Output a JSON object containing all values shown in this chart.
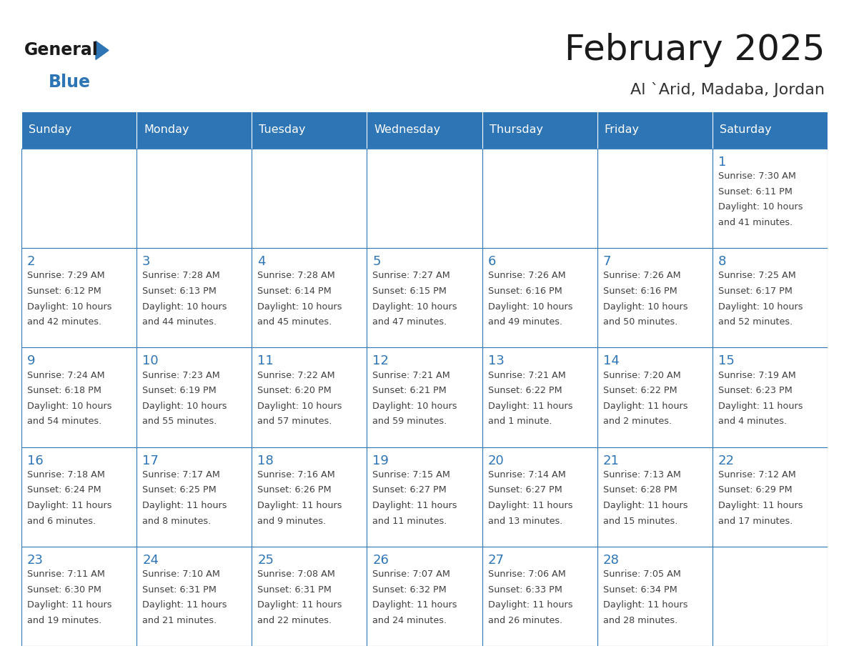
{
  "title": "February 2025",
  "subtitle": "Al `Arid, Madaba, Jordan",
  "days_of_week": [
    "Sunday",
    "Monday",
    "Tuesday",
    "Wednesday",
    "Thursday",
    "Friday",
    "Saturday"
  ],
  "header_bg": "#2E75B6",
  "header_text": "#FFFFFF",
  "cell_bg": "#FFFFFF",
  "day_number_color": "#2E75B6",
  "info_text_color": "#404040",
  "border_color": "#2E75B6",
  "title_color": "#1a1a1a",
  "subtitle_color": "#333333",
  "logo_general_color": "#1a1a1a",
  "logo_blue_color": "#2E75B6",
  "figsize": [
    11.88,
    9.18
  ],
  "dpi": 100,
  "calendar_data": [
    [
      null,
      null,
      null,
      null,
      null,
      null,
      {
        "day": "1",
        "sunrise": "7:30 AM",
        "sunset": "6:11 PM",
        "daylight_h": "10 hours",
        "daylight_m": "41 minutes."
      }
    ],
    [
      {
        "day": "2",
        "sunrise": "7:29 AM",
        "sunset": "6:12 PM",
        "daylight_h": "10 hours",
        "daylight_m": "42 minutes."
      },
      {
        "day": "3",
        "sunrise": "7:28 AM",
        "sunset": "6:13 PM",
        "daylight_h": "10 hours",
        "daylight_m": "44 minutes."
      },
      {
        "day": "4",
        "sunrise": "7:28 AM",
        "sunset": "6:14 PM",
        "daylight_h": "10 hours",
        "daylight_m": "45 minutes."
      },
      {
        "day": "5",
        "sunrise": "7:27 AM",
        "sunset": "6:15 PM",
        "daylight_h": "10 hours",
        "daylight_m": "47 minutes."
      },
      {
        "day": "6",
        "sunrise": "7:26 AM",
        "sunset": "6:16 PM",
        "daylight_h": "10 hours",
        "daylight_m": "49 minutes."
      },
      {
        "day": "7",
        "sunrise": "7:26 AM",
        "sunset": "6:16 PM",
        "daylight_h": "10 hours",
        "daylight_m": "50 minutes."
      },
      {
        "day": "8",
        "sunrise": "7:25 AM",
        "sunset": "6:17 PM",
        "daylight_h": "10 hours",
        "daylight_m": "52 minutes."
      }
    ],
    [
      {
        "day": "9",
        "sunrise": "7:24 AM",
        "sunset": "6:18 PM",
        "daylight_h": "10 hours",
        "daylight_m": "54 minutes."
      },
      {
        "day": "10",
        "sunrise": "7:23 AM",
        "sunset": "6:19 PM",
        "daylight_h": "10 hours",
        "daylight_m": "55 minutes."
      },
      {
        "day": "11",
        "sunrise": "7:22 AM",
        "sunset": "6:20 PM",
        "daylight_h": "10 hours",
        "daylight_m": "57 minutes."
      },
      {
        "day": "12",
        "sunrise": "7:21 AM",
        "sunset": "6:21 PM",
        "daylight_h": "10 hours",
        "daylight_m": "59 minutes."
      },
      {
        "day": "13",
        "sunrise": "7:21 AM",
        "sunset": "6:22 PM",
        "daylight_h": "11 hours",
        "daylight_m": "1 minute."
      },
      {
        "day": "14",
        "sunrise": "7:20 AM",
        "sunset": "6:22 PM",
        "daylight_h": "11 hours",
        "daylight_m": "2 minutes."
      },
      {
        "day": "15",
        "sunrise": "7:19 AM",
        "sunset": "6:23 PM",
        "daylight_h": "11 hours",
        "daylight_m": "4 minutes."
      }
    ],
    [
      {
        "day": "16",
        "sunrise": "7:18 AM",
        "sunset": "6:24 PM",
        "daylight_h": "11 hours",
        "daylight_m": "6 minutes."
      },
      {
        "day": "17",
        "sunrise": "7:17 AM",
        "sunset": "6:25 PM",
        "daylight_h": "11 hours",
        "daylight_m": "8 minutes."
      },
      {
        "day": "18",
        "sunrise": "7:16 AM",
        "sunset": "6:26 PM",
        "daylight_h": "11 hours",
        "daylight_m": "9 minutes."
      },
      {
        "day": "19",
        "sunrise": "7:15 AM",
        "sunset": "6:27 PM",
        "daylight_h": "11 hours",
        "daylight_m": "11 minutes."
      },
      {
        "day": "20",
        "sunrise": "7:14 AM",
        "sunset": "6:27 PM",
        "daylight_h": "11 hours",
        "daylight_m": "13 minutes."
      },
      {
        "day": "21",
        "sunrise": "7:13 AM",
        "sunset": "6:28 PM",
        "daylight_h": "11 hours",
        "daylight_m": "15 minutes."
      },
      {
        "day": "22",
        "sunrise": "7:12 AM",
        "sunset": "6:29 PM",
        "daylight_h": "11 hours",
        "daylight_m": "17 minutes."
      }
    ],
    [
      {
        "day": "23",
        "sunrise": "7:11 AM",
        "sunset": "6:30 PM",
        "daylight_h": "11 hours",
        "daylight_m": "19 minutes."
      },
      {
        "day": "24",
        "sunrise": "7:10 AM",
        "sunset": "6:31 PM",
        "daylight_h": "11 hours",
        "daylight_m": "21 minutes."
      },
      {
        "day": "25",
        "sunrise": "7:08 AM",
        "sunset": "6:31 PM",
        "daylight_h": "11 hours",
        "daylight_m": "22 minutes."
      },
      {
        "day": "26",
        "sunrise": "7:07 AM",
        "sunset": "6:32 PM",
        "daylight_h": "11 hours",
        "daylight_m": "24 minutes."
      },
      {
        "day": "27",
        "sunrise": "7:06 AM",
        "sunset": "6:33 PM",
        "daylight_h": "11 hours",
        "daylight_m": "26 minutes."
      },
      {
        "day": "28",
        "sunrise": "7:05 AM",
        "sunset": "6:34 PM",
        "daylight_h": "11 hours",
        "daylight_m": "28 minutes."
      },
      null
    ]
  ]
}
